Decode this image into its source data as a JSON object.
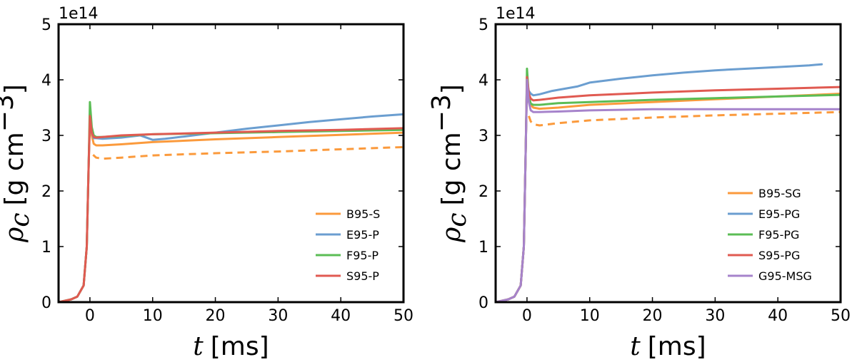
{
  "colors": {
    "orange": "#fb9a3c",
    "blue": "#6b9ed0",
    "green": "#5bbd55",
    "red": "#e05a51",
    "purple": "#a683cb"
  },
  "chart_data": [
    {
      "type": "line",
      "xlabel_var": "t",
      "xlabel_unit": "[ms]",
      "ylabel_var": "ρ",
      "ylabel_sub": "c",
      "ylabel_unit": "[g cm",
      "ylabel_exp": "−3",
      "ylabel_close": "]",
      "exponent_label": "1e14",
      "xlim": [
        -5,
        50
      ],
      "ylim": [
        0,
        5
      ],
      "xticks": [
        0,
        10,
        20,
        30,
        40,
        50
      ],
      "yticks": [
        0,
        1,
        2,
        3,
        4,
        5
      ],
      "legend_position": "lower-right",
      "series": [
        {
          "name": "B95-S",
          "color": "orange",
          "dashed": false,
          "x": [
            -5,
            -3,
            -2,
            -1,
            -0.5,
            -0.2,
            0,
            0.3,
            0.6,
            1,
            2,
            5,
            10,
            20,
            30,
            40,
            50
          ],
          "y": [
            0,
            0.05,
            0.1,
            0.3,
            1.0,
            2.5,
            3.2,
            3.0,
            2.85,
            2.82,
            2.82,
            2.84,
            2.88,
            2.93,
            2.97,
            3.01,
            3.05
          ]
        },
        {
          "name": "B95-S (dashed)",
          "color": "orange",
          "dashed": true,
          "x": [
            0.5,
            1,
            2,
            5,
            10,
            20,
            30,
            40,
            50
          ],
          "y": [
            2.65,
            2.6,
            2.58,
            2.6,
            2.64,
            2.68,
            2.71,
            2.75,
            2.79
          ]
        },
        {
          "name": "E95-P",
          "color": "blue",
          "dashed": false,
          "x": [
            -5,
            -3,
            -2,
            -1,
            -0.5,
            -0.2,
            0,
            0.3,
            0.6,
            1,
            2,
            5,
            8,
            9,
            10,
            12,
            15,
            20,
            25,
            30,
            35,
            40,
            45,
            50
          ],
          "y": [
            0,
            0.05,
            0.1,
            0.3,
            1.0,
            2.5,
            3.3,
            3.05,
            2.95,
            2.95,
            2.94,
            2.96,
            3.0,
            2.96,
            2.92,
            2.94,
            2.98,
            3.05,
            3.12,
            3.18,
            3.24,
            3.29,
            3.34,
            3.38
          ]
        },
        {
          "name": "F95-P",
          "color": "green",
          "dashed": false,
          "x": [
            -5,
            -3,
            -2,
            -1,
            -0.5,
            -0.2,
            0,
            0.3,
            0.6,
            1,
            2,
            5,
            10,
            20,
            30,
            40,
            50
          ],
          "y": [
            0,
            0.05,
            0.1,
            0.3,
            1.0,
            2.5,
            3.6,
            3.15,
            3.0,
            2.97,
            2.97,
            2.99,
            3.02,
            3.04,
            3.06,
            3.08,
            3.1
          ]
        },
        {
          "name": "S95-P",
          "color": "red",
          "dashed": false,
          "x": [
            -5,
            -3,
            -2,
            -1,
            -0.5,
            -0.2,
            0,
            0.3,
            0.6,
            1,
            2,
            5,
            10,
            20,
            30,
            40,
            50
          ],
          "y": [
            0,
            0.05,
            0.1,
            0.3,
            1.0,
            2.5,
            3.35,
            3.05,
            2.97,
            2.96,
            2.97,
            3.0,
            3.02,
            3.05,
            3.08,
            3.1,
            3.13
          ]
        }
      ],
      "legend": [
        {
          "label": "B95-S",
          "color": "orange"
        },
        {
          "label": "E95-P",
          "color": "blue"
        },
        {
          "label": "F95-P",
          "color": "green"
        },
        {
          "label": "S95-P",
          "color": "red"
        }
      ]
    },
    {
      "type": "line",
      "xlabel_var": "t",
      "xlabel_unit": "[ms]",
      "ylabel_var": "ρ",
      "ylabel_sub": "c",
      "ylabel_unit": "[g cm",
      "ylabel_exp": "−3",
      "ylabel_close": "]",
      "exponent_label": "1e14",
      "xlim": [
        -5,
        50
      ],
      "ylim": [
        0,
        5
      ],
      "xticks": [
        0,
        10,
        20,
        30,
        40,
        50
      ],
      "yticks": [
        0,
        1,
        2,
        3,
        4,
        5
      ],
      "legend_position": "lower-right",
      "series": [
        {
          "name": "B95-SG",
          "color": "orange",
          "dashed": false,
          "x": [
            -5,
            -3,
            -2,
            -1,
            -0.5,
            -0.2,
            0,
            0.3,
            0.6,
            1,
            2,
            5,
            10,
            20,
            30,
            40,
            50
          ],
          "y": [
            0,
            0.05,
            0.1,
            0.3,
            1.0,
            2.8,
            4.0,
            3.7,
            3.55,
            3.5,
            3.48,
            3.5,
            3.55,
            3.6,
            3.65,
            3.7,
            3.75
          ]
        },
        {
          "name": "B95-SG (dashed)",
          "color": "orange",
          "dashed": true,
          "x": [
            0.3,
            0.6,
            1,
            2,
            5,
            10,
            20,
            30,
            40,
            50
          ],
          "y": [
            3.35,
            3.25,
            3.2,
            3.18,
            3.22,
            3.27,
            3.32,
            3.36,
            3.39,
            3.42
          ]
        },
        {
          "name": "E95-PG",
          "color": "blue",
          "dashed": false,
          "x": [
            -5,
            -3,
            -2,
            -1,
            -0.5,
            -0.2,
            0,
            0.3,
            0.6,
            1,
            2,
            4,
            6,
            8,
            10,
            15,
            20,
            25,
            30,
            35,
            40,
            45,
            47
          ],
          "y": [
            0,
            0.05,
            0.1,
            0.3,
            1.0,
            2.8,
            3.95,
            3.8,
            3.75,
            3.72,
            3.74,
            3.8,
            3.84,
            3.88,
            3.95,
            4.02,
            4.08,
            4.13,
            4.17,
            4.2,
            4.23,
            4.26,
            4.28
          ]
        },
        {
          "name": "F95-PG",
          "color": "green",
          "dashed": false,
          "x": [
            -5,
            -3,
            -2,
            -1,
            -0.5,
            -0.2,
            0,
            0.3,
            0.6,
            1,
            2,
            5,
            10,
            20,
            30,
            40,
            50
          ],
          "y": [
            0,
            0.05,
            0.1,
            0.3,
            1.0,
            2.8,
            4.2,
            3.7,
            3.57,
            3.55,
            3.55,
            3.58,
            3.6,
            3.64,
            3.67,
            3.7,
            3.73
          ]
        },
        {
          "name": "S95-PG",
          "color": "red",
          "dashed": false,
          "x": [
            -5,
            -3,
            -2,
            -1,
            -0.5,
            -0.2,
            0,
            0.3,
            0.6,
            1,
            2,
            5,
            10,
            20,
            30,
            40,
            50
          ],
          "y": [
            0,
            0.05,
            0.1,
            0.3,
            1.0,
            2.8,
            4.05,
            3.75,
            3.66,
            3.63,
            3.64,
            3.68,
            3.72,
            3.77,
            3.81,
            3.84,
            3.87
          ]
        },
        {
          "name": "G95-MSG",
          "color": "purple",
          "dashed": false,
          "x": [
            -5,
            -3,
            -2,
            -1,
            -0.5,
            -0.2,
            0,
            0.3,
            0.6,
            1,
            2,
            5,
            10,
            20,
            30,
            40,
            50
          ],
          "y": [
            0,
            0.05,
            0.1,
            0.3,
            1.0,
            2.8,
            4.0,
            3.6,
            3.45,
            3.42,
            3.42,
            3.43,
            3.45,
            3.47,
            3.47,
            3.47,
            3.47
          ]
        }
      ],
      "legend": [
        {
          "label": "B95-SG",
          "color": "orange"
        },
        {
          "label": "E95-PG",
          "color": "blue"
        },
        {
          "label": "F95-PG",
          "color": "green"
        },
        {
          "label": "S95-PG",
          "color": "red"
        },
        {
          "label": "G95-MSG",
          "color": "purple"
        }
      ]
    }
  ]
}
